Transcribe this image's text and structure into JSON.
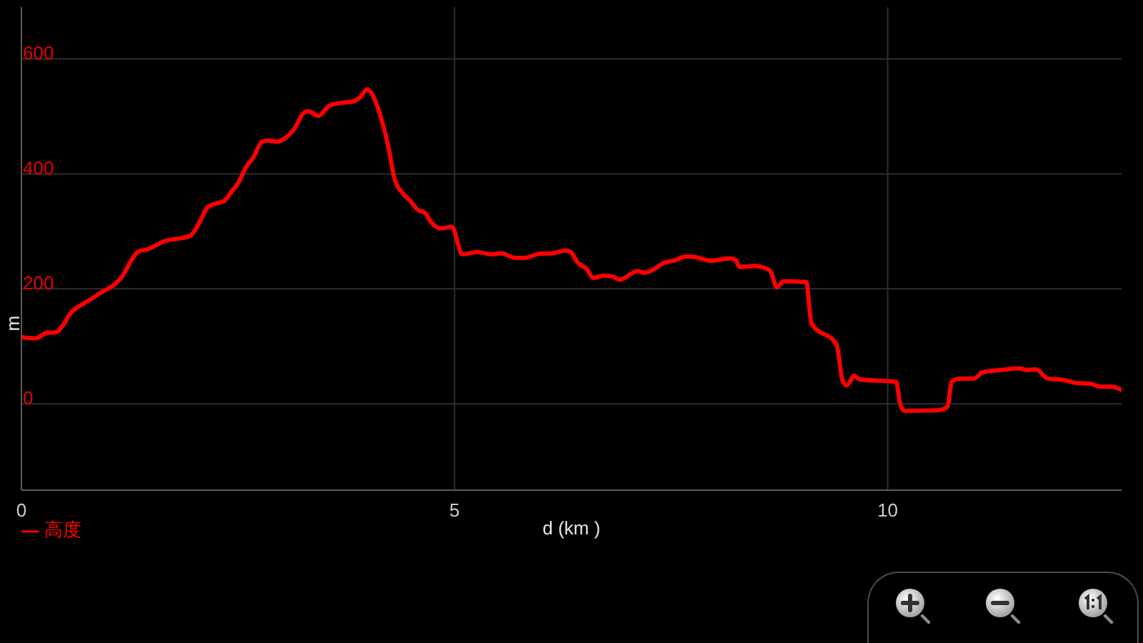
{
  "chart_data": {
    "type": "line",
    "xlabel": "d (km )",
    "ylabel": "m",
    "xlim": [
      0,
      12.7
    ],
    "ylim": [
      -150,
      690
    ],
    "xticks": [
      0,
      5,
      10
    ],
    "yticks": [
      0,
      200,
      400,
      600
    ],
    "grid": true,
    "legend": "bottom left",
    "x": [
      0,
      0.17,
      0.28,
      0.41,
      0.47,
      0.58,
      0.69,
      0.8,
      0.91,
      1.05,
      1.16,
      1.27,
      1.35,
      1.46,
      1.57,
      1.65,
      1.79,
      1.93,
      1.98,
      2.07,
      2.15,
      2.26,
      2.34,
      2.42,
      2.51,
      2.59,
      2.67,
      2.78,
      2.84,
      2.95,
      3.06,
      3.17,
      3.25,
      3.31,
      3.43,
      3.55,
      3.66,
      3.83,
      3.91,
      3.99,
      4.05,
      4.16,
      4.24,
      4.31,
      4.41,
      4.49,
      4.57,
      4.66,
      4.72,
      4.84,
      4.97,
      5.09,
      5.26,
      5.43,
      5.54,
      5.7,
      5.81,
      5.98,
      6.14,
      6.28,
      6.34,
      6.42,
      6.53,
      6.6,
      6.72,
      6.83,
      6.91,
      7.11,
      7.19,
      7.3,
      7.4,
      7.55,
      7.66,
      7.74,
      7.96,
      8.18,
      8.24,
      8.29,
      8.46,
      8.62,
      8.65,
      8.72,
      8.8,
      9.06,
      9.12,
      9.41,
      9.48,
      9.53,
      9.57,
      9.61,
      9.67,
      10.1,
      10.14,
      10.19,
      10.58,
      10.69,
      10.74,
      10.83,
      10.99,
      11.1,
      11.32,
      11.52,
      11.6,
      11.71,
      11.85,
      12.01,
      12.2,
      12.34,
      12.45,
      12.59,
      12.7
    ],
    "series": [
      {
        "name": "高度",
        "color": "#ff0000",
        "values": [
          116,
          114,
          123,
          125,
          135,
          160,
          172,
          182,
          193,
          205,
          221,
          250,
          265,
          269,
          277,
          283,
          287,
          291,
          297,
          320,
          342,
          349,
          353,
          368,
          386,
          411,
          427,
          456,
          458,
          456,
          464,
          483,
          505,
          509,
          501,
          518,
          523,
          526,
          533,
          547,
          538,
          493,
          444,
          390,
          365,
          353,
          338,
          332,
          318,
          305,
          308,
          260,
          264,
          260,
          262,
          254,
          254,
          261,
          262,
          267,
          264,
          246,
          234,
          219,
          223,
          221,
          216,
          231,
          228,
          234,
          244,
          250,
          256,
          256,
          249,
          253,
          251,
          238,
          240,
          234,
          230,
          203,
          213,
          212,
          140,
          103,
          40,
          32,
          40,
          49,
          43,
          38,
          3,
          -12,
          -11,
          -5,
          39,
          44,
          44,
          55,
          59,
          62,
          59,
          60,
          44,
          42,
          36,
          35,
          30,
          30,
          24
        ]
      }
    ]
  }
}
